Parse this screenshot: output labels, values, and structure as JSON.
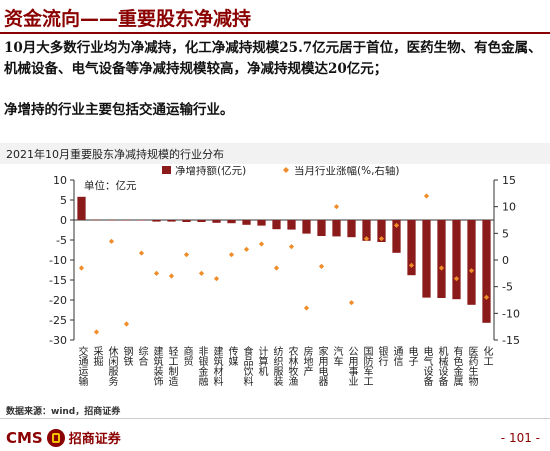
{
  "header": {
    "title": "资金流向——重要股东净减持"
  },
  "body": {
    "para1": "10月大多数行业均为净减持，化工净减持规模25.7亿元居于首位，医药生物、有色金属、机械设备、电气设备等净减持规模较高，净减持规模达20亿元；",
    "para2": "净增持的行业主要包括交通运输行业。"
  },
  "chart_data": {
    "type": "bar",
    "title": "2021年10月重要股东净减持规模的行业分布",
    "unit_label": "单位：亿元",
    "categories": [
      "交通运输",
      "采掘",
      "休闲服务",
      "钢铁",
      "综合",
      "建筑装饰",
      "轻工制造",
      "商贸",
      "非银金融",
      "建筑材料",
      "传媒",
      "食品饮料",
      "计算机",
      "纺织服装",
      "农林牧渔",
      "房地产",
      "家用电器",
      "汽车",
      "公用事业",
      "国防军工",
      "银行",
      "通信",
      "电子",
      "电气设备",
      "机械设备",
      "有色金属",
      "医药生物",
      "化工"
    ],
    "series": [
      {
        "name": "净增持额(亿元)",
        "type": "bar",
        "axis": "left",
        "color": "#8b1a1a",
        "values": [
          5.8,
          0.1,
          0.0,
          0.0,
          0.0,
          -0.4,
          -0.4,
          -0.5,
          -0.5,
          -0.7,
          -0.8,
          -1.2,
          -1.4,
          -2.3,
          -2.4,
          -3.4,
          -4.0,
          -4.1,
          -4.3,
          -5.2,
          -5.5,
          -8.2,
          -13.8,
          -19.4,
          -19.5,
          -19.8,
          -21.2,
          -25.7
        ]
      },
      {
        "name": "当月行业涨幅(%,右轴)",
        "type": "scatter",
        "axis": "right",
        "color": "#f08c28",
        "values": [
          -1.5,
          -13.5,
          3.5,
          -12.0,
          1.3,
          -2.5,
          -3.0,
          1.0,
          -2.5,
          -3.5,
          1.0,
          2.0,
          3.0,
          -1.5,
          2.5,
          -9.0,
          -1.2,
          10.0,
          -8.0,
          4.0,
          4.0,
          6.5,
          -1.0,
          12.0,
          -1.5,
          -3.5,
          -2.0,
          -7.0
        ]
      }
    ],
    "ylim_left": [
      -30,
      10
    ],
    "yticks_left": [
      10,
      5,
      0,
      -5,
      -10,
      -15,
      -20,
      -25,
      -30
    ],
    "ylim_right": [
      -15,
      15
    ],
    "yticks_right": [
      15,
      10,
      5,
      0,
      -5,
      -10,
      -15
    ],
    "legend_position": "top"
  },
  "footer": {
    "source": "数据来源：wind，招商证券",
    "logo_text": "CMS",
    "logo_cn": "招商证券",
    "page": "- 101 -"
  }
}
